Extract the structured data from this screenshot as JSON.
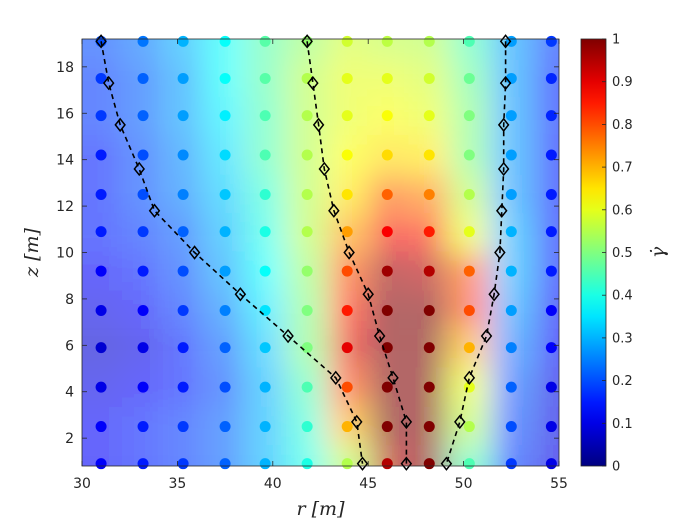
{
  "chart_data": {
    "type": "heatmap",
    "title": "",
    "xlabel": "r [m]",
    "ylabel": "z [m]",
    "colorbar_label": "γ̇",
    "xlim": [
      30,
      55
    ],
    "ylim": [
      0.8,
      19.2
    ],
    "clim": [
      0,
      1
    ],
    "colormap": "jet",
    "x_ticks": [
      30,
      35,
      40,
      45,
      50,
      55
    ],
    "y_ticks": [
      2,
      4,
      6,
      8,
      10,
      12,
      14,
      16,
      18
    ],
    "colorbar_ticks": [
      0,
      0.1,
      0.2,
      0.3,
      0.4,
      0.5,
      0.6,
      0.7,
      0.8,
      0.9,
      1
    ],
    "point_grid": {
      "x": [
        31,
        33.2,
        35.3,
        37.5,
        39.6,
        41.8,
        43.9,
        46,
        48.2,
        50.3,
        52.5,
        54.6
      ],
      "y": [
        0.9,
        2.5,
        4.2,
        5.9,
        7.5,
        9.2,
        10.9,
        12.5,
        14.2,
        15.9,
        17.5,
        19.1
      ],
      "values": [
        [
          0.12,
          0.15,
          0.18,
          0.22,
          0.3,
          0.4,
          0.55,
          0.95,
          1.0,
          0.45,
          0.18,
          0.1
        ],
        [
          0.12,
          0.15,
          0.18,
          0.22,
          0.3,
          0.42,
          0.7,
          1.0,
          1.0,
          0.55,
          0.2,
          0.1
        ],
        [
          0.1,
          0.12,
          0.15,
          0.2,
          0.3,
          0.45,
          0.8,
          1.0,
          1.0,
          0.6,
          0.22,
          0.1
        ],
        [
          0.08,
          0.1,
          0.15,
          0.22,
          0.32,
          0.5,
          0.9,
          1.0,
          1.0,
          0.7,
          0.25,
          0.12
        ],
        [
          0.1,
          0.12,
          0.18,
          0.25,
          0.35,
          0.5,
          0.85,
          1.0,
          1.0,
          0.8,
          0.28,
          0.12
        ],
        [
          0.12,
          0.15,
          0.2,
          0.28,
          0.38,
          0.52,
          0.8,
          0.97,
          0.95,
          0.78,
          0.3,
          0.15
        ],
        [
          0.15,
          0.18,
          0.22,
          0.3,
          0.4,
          0.55,
          0.72,
          0.88,
          0.85,
          0.6,
          0.3,
          0.15
        ],
        [
          0.15,
          0.2,
          0.25,
          0.32,
          0.42,
          0.55,
          0.65,
          0.78,
          0.75,
          0.55,
          0.28,
          0.15
        ],
        [
          0.15,
          0.2,
          0.26,
          0.34,
          0.45,
          0.55,
          0.62,
          0.66,
          0.65,
          0.5,
          0.28,
          0.15
        ],
        [
          0.18,
          0.22,
          0.28,
          0.36,
          0.45,
          0.55,
          0.6,
          0.62,
          0.6,
          0.5,
          0.28,
          0.16
        ],
        [
          0.18,
          0.22,
          0.28,
          0.38,
          0.46,
          0.55,
          0.6,
          0.6,
          0.58,
          0.48,
          0.28,
          0.16
        ],
        [
          0.2,
          0.24,
          0.3,
          0.38,
          0.46,
          0.52,
          0.58,
          0.56,
          0.55,
          0.45,
          0.28,
          0.18
        ]
      ]
    },
    "series": [
      {
        "x": [
          31,
          31.4,
          32,
          33,
          33.8,
          35.9,
          38.3,
          40.8,
          43.3,
          44.4,
          44.7
        ],
        "y": [
          19.1,
          17.3,
          15.5,
          13.6,
          11.8,
          10.0,
          8.2,
          6.4,
          4.6,
          2.7,
          0.9
        ]
      },
      {
        "x": [
          41.8,
          42.1,
          42.4,
          42.7,
          43.2,
          44,
          45,
          45.6,
          46.3,
          47,
          47
        ],
        "y": [
          19.1,
          17.3,
          15.5,
          13.6,
          11.8,
          10.0,
          8.2,
          6.4,
          4.6,
          2.7,
          0.9
        ]
      },
      {
        "x": [
          52.2,
          52.2,
          52.1,
          52.1,
          52,
          51.9,
          51.6,
          51.2,
          50.3,
          49.8,
          49.1
        ],
        "y": [
          19.1,
          17.3,
          15.5,
          13.6,
          11.8,
          10.0,
          8.2,
          6.4,
          4.6,
          2.7,
          0.9
        ]
      }
    ]
  }
}
